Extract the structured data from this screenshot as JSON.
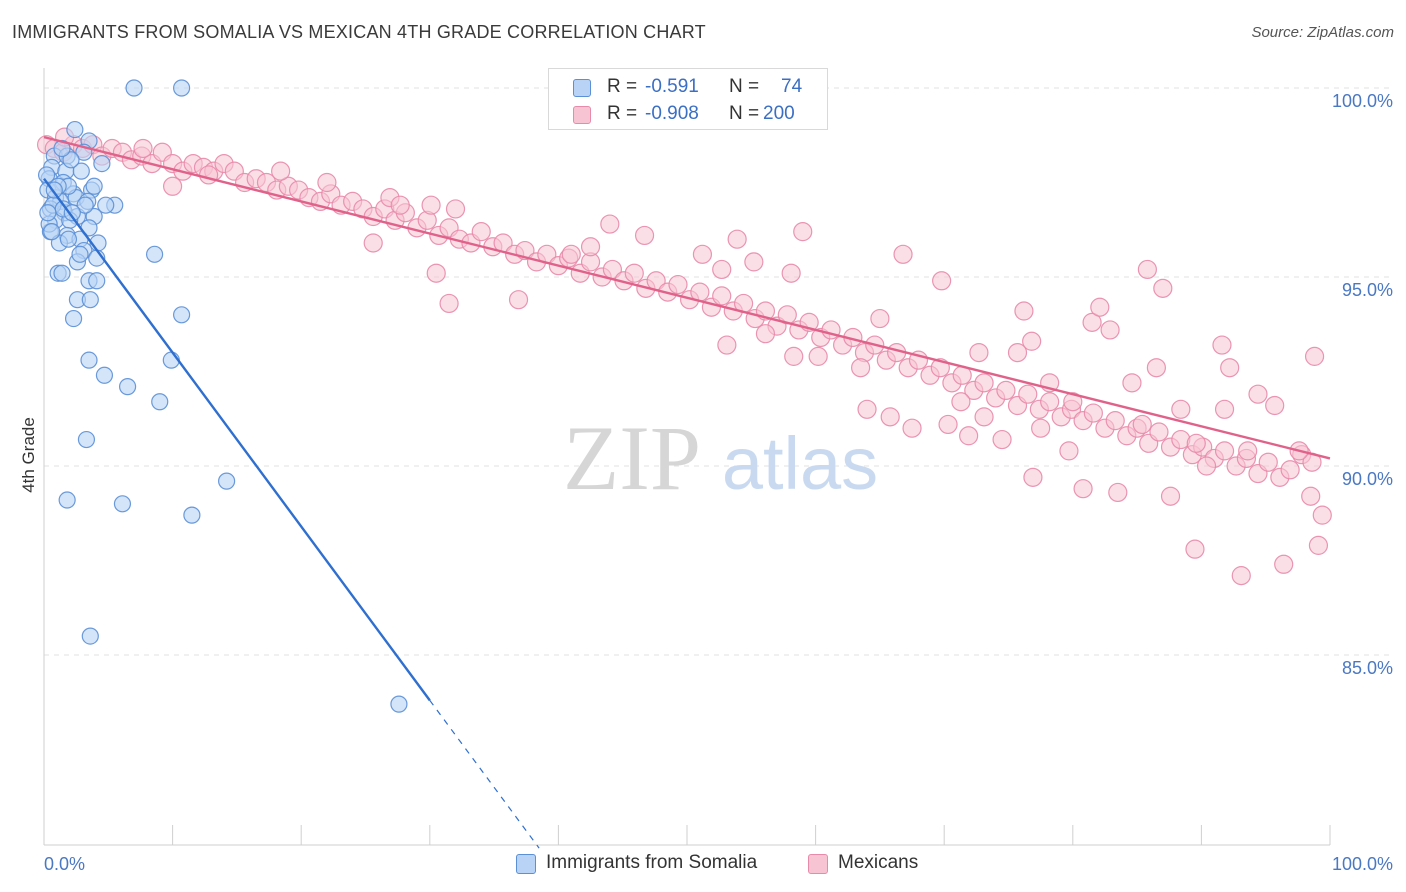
{
  "title": "IMMIGRANTS FROM SOMALIA VS MEXICAN 4TH GRADE CORRELATION CHART",
  "source": "Source: ZipAtlas.com",
  "watermark": {
    "zip": "ZIP",
    "atlas": "atlas"
  },
  "legend": {
    "rows": [
      {
        "r_label": "R =",
        "r_value": "-0.591",
        "n_label": "N =",
        "n_value": "74"
      },
      {
        "r_label": "R =",
        "r_value": "-0.908",
        "n_label": "N =",
        "n_value": "200"
      }
    ]
  },
  "colors": {
    "somalia_fill": "#b8d3f5",
    "somalia_stroke": "#5b8fd6",
    "somalia_line": "#2f6fcf",
    "mexican_fill": "#f7c4d4",
    "mexican_stroke": "#e88aaa",
    "mexican_line": "#e0628b",
    "tick_text": "#4a78c2",
    "grid": "#e2e2e2"
  },
  "chart_data": {
    "type": "scatter",
    "title": "IMMIGRANTS FROM SOMALIA VS MEXICAN 4TH GRADE CORRELATION CHART",
    "xlabel": "",
    "ylabel": "4th Grade",
    "xlim": [
      0,
      100
    ],
    "ylim": [
      80.5,
      101
    ],
    "x_tick_labels": [
      "0.0%",
      "100.0%"
    ],
    "y_ticks": [
      85,
      90,
      95,
      100
    ],
    "y_tick_labels": [
      "85.0%",
      "90.0%",
      "95.0%",
      "100.0%"
    ],
    "grid": true,
    "legend_position": "bottom",
    "series": [
      {
        "name": "Immigrants from Somalia",
        "R": -0.591,
        "N": 74,
        "trend": {
          "x0": 0,
          "y0": 97.6,
          "x1": 30,
          "y1": 83.8,
          "dashed_to_x": 38.5
        },
        "points": [
          [
            7,
            100
          ],
          [
            10.7,
            100
          ],
          [
            2.4,
            98.9
          ],
          [
            3.5,
            98.6
          ],
          [
            0.8,
            98.2
          ],
          [
            1.8,
            98.2
          ],
          [
            3.1,
            98.3
          ],
          [
            0.6,
            97.9
          ],
          [
            1.7,
            97.8
          ],
          [
            2.9,
            97.8
          ],
          [
            4.5,
            98
          ],
          [
            0.4,
            97.6
          ],
          [
            1.5,
            97.5
          ],
          [
            0.3,
            97.3
          ],
          [
            2.3,
            97.2
          ],
          [
            3.7,
            97.3
          ],
          [
            0.9,
            97.1
          ],
          [
            1.3,
            97
          ],
          [
            2.5,
            97.1
          ],
          [
            3.4,
            97
          ],
          [
            5.5,
            96.9
          ],
          [
            0.5,
            96.8
          ],
          [
            1.6,
            96.7
          ],
          [
            2.6,
            96.6
          ],
          [
            3.9,
            96.6
          ],
          [
            0.9,
            96.5
          ],
          [
            2,
            96.5
          ],
          [
            3.5,
            96.3
          ],
          [
            0.5,
            96.2
          ],
          [
            1.8,
            96.1
          ],
          [
            2.8,
            96
          ],
          [
            4.2,
            95.9
          ],
          [
            1.2,
            95.9
          ],
          [
            3.1,
            95.7
          ],
          [
            4.1,
            95.5
          ],
          [
            2.6,
            95.4
          ],
          [
            8.6,
            95.6
          ],
          [
            1.1,
            95.1
          ],
          [
            1.4,
            95.1
          ],
          [
            3.5,
            94.9
          ],
          [
            4.1,
            94.9
          ],
          [
            2.6,
            94.4
          ],
          [
            3.6,
            94.4
          ],
          [
            2.3,
            93.9
          ],
          [
            10.7,
            94
          ],
          [
            3.5,
            92.8
          ],
          [
            9.9,
            92.8
          ],
          [
            4.7,
            92.4
          ],
          [
            6.5,
            92.1
          ],
          [
            9,
            91.7
          ],
          [
            3.3,
            90.7
          ],
          [
            14.2,
            89.6
          ],
          [
            1.8,
            89.1
          ],
          [
            6.1,
            89
          ],
          [
            11.5,
            88.7
          ],
          [
            3.6,
            85.5
          ],
          [
            27.6,
            83.7
          ],
          [
            0.4,
            96.4
          ],
          [
            1.9,
            97.4
          ],
          [
            0.7,
            96.9
          ],
          [
            2.1,
            98.1
          ],
          [
            1.1,
            97.4
          ],
          [
            0.2,
            97.7
          ],
          [
            3.2,
            96.9
          ],
          [
            1.5,
            96.8
          ],
          [
            0.6,
            96.2
          ],
          [
            4.8,
            96.9
          ],
          [
            1.9,
            96
          ],
          [
            2.8,
            95.6
          ],
          [
            0.8,
            97.3
          ],
          [
            1.4,
            98.4
          ],
          [
            3.9,
            97.4
          ],
          [
            0.3,
            96.7
          ],
          [
            2.2,
            96.7
          ]
        ]
      },
      {
        "name": "Mexicans",
        "R": -0.908,
        "N": 200,
        "trend": {
          "x0": 0,
          "y0": 98.7,
          "x1": 100,
          "y1": 90.2
        },
        "points": [
          [
            0.2,
            98.5
          ],
          [
            0.8,
            98.4
          ],
          [
            1.5,
            98.3
          ],
          [
            2.3,
            98.5
          ],
          [
            3,
            98.4
          ],
          [
            3.8,
            98.5
          ],
          [
            4.5,
            98.2
          ],
          [
            5.3,
            98.4
          ],
          [
            6.1,
            98.3
          ],
          [
            6.8,
            98.1
          ],
          [
            7.6,
            98.2
          ],
          [
            8.4,
            98
          ],
          [
            9.2,
            98.3
          ],
          [
            10,
            98
          ],
          [
            10.8,
            97.8
          ],
          [
            11.6,
            98
          ],
          [
            12.4,
            97.9
          ],
          [
            13.2,
            97.8
          ],
          [
            14,
            98
          ],
          [
            14.8,
            97.8
          ],
          [
            15.6,
            97.5
          ],
          [
            16.5,
            97.6
          ],
          [
            17.3,
            97.5
          ],
          [
            18.1,
            97.3
          ],
          [
            19,
            97.4
          ],
          [
            19.8,
            97.3
          ],
          [
            20.6,
            97.1
          ],
          [
            21.5,
            97
          ],
          [
            22.3,
            97.2
          ],
          [
            23.1,
            96.9
          ],
          [
            24,
            97
          ],
          [
            24.8,
            96.8
          ],
          [
            25.6,
            96.6
          ],
          [
            26.5,
            96.8
          ],
          [
            27.3,
            96.5
          ],
          [
            28.1,
            96.7
          ],
          [
            29,
            96.3
          ],
          [
            29.8,
            96.5
          ],
          [
            30.7,
            96.1
          ],
          [
            31.5,
            96.3
          ],
          [
            32.3,
            96
          ],
          [
            33.2,
            95.9
          ],
          [
            34,
            96.2
          ],
          [
            34.9,
            95.8
          ],
          [
            35.7,
            95.9
          ],
          [
            36.6,
            95.6
          ],
          [
            37.4,
            95.7
          ],
          [
            38.3,
            95.4
          ],
          [
            39.1,
            95.6
          ],
          [
            40,
            95.3
          ],
          [
            40.8,
            95.5
          ],
          [
            41.7,
            95.1
          ],
          [
            42.5,
            95.4
          ],
          [
            43.4,
            95
          ],
          [
            44.2,
            95.2
          ],
          [
            45.1,
            94.9
          ],
          [
            45.9,
            95.1
          ],
          [
            46.8,
            94.7
          ],
          [
            47.6,
            94.9
          ],
          [
            48.5,
            94.6
          ],
          [
            49.3,
            94.8
          ],
          [
            50.2,
            94.4
          ],
          [
            51,
            94.6
          ],
          [
            51.9,
            94.2
          ],
          [
            52.7,
            94.5
          ],
          [
            53.6,
            94.1
          ],
          [
            54.4,
            94.3
          ],
          [
            55.3,
            93.9
          ],
          [
            56.1,
            94.1
          ],
          [
            57,
            93.7
          ],
          [
            57.8,
            94
          ],
          [
            58.7,
            93.6
          ],
          [
            59.5,
            93.8
          ],
          [
            60.4,
            93.4
          ],
          [
            61.2,
            93.6
          ],
          [
            62.1,
            93.2
          ],
          [
            62.9,
            93.4
          ],
          [
            63.8,
            93
          ],
          [
            64.6,
            93.2
          ],
          [
            65.5,
            92.8
          ],
          [
            66.3,
            93
          ],
          [
            67.2,
            92.6
          ],
          [
            68,
            92.8
          ],
          [
            68.9,
            92.4
          ],
          [
            69.7,
            92.6
          ],
          [
            70.6,
            92.2
          ],
          [
            71.4,
            92.4
          ],
          [
            72.3,
            92
          ],
          [
            73.1,
            92.2
          ],
          [
            74,
            91.8
          ],
          [
            74.8,
            92
          ],
          [
            75.7,
            91.6
          ],
          [
            76.5,
            91.9
          ],
          [
            77.4,
            91.5
          ],
          [
            78.2,
            91.7
          ],
          [
            79.1,
            91.3
          ],
          [
            79.9,
            91.5
          ],
          [
            80.8,
            91.2
          ],
          [
            81.6,
            91.4
          ],
          [
            82.5,
            91
          ],
          [
            83.3,
            91.2
          ],
          [
            84.2,
            90.8
          ],
          [
            85,
            91
          ],
          [
            85.9,
            90.6
          ],
          [
            86.7,
            90.9
          ],
          [
            87.6,
            90.5
          ],
          [
            88.4,
            90.7
          ],
          [
            89.3,
            90.3
          ],
          [
            90.1,
            90.5
          ],
          [
            91,
            90.2
          ],
          [
            91.8,
            90.4
          ],
          [
            92.7,
            90
          ],
          [
            93.5,
            90.2
          ],
          [
            94.4,
            89.8
          ],
          [
            95.2,
            90.1
          ],
          [
            96.1,
            89.7
          ],
          [
            96.9,
            89.9
          ],
          [
            97.8,
            90.3
          ],
          [
            98.6,
            90.1
          ],
          [
            99.4,
            88.7
          ],
          [
            10,
            97.4
          ],
          [
            25.6,
            95.9
          ],
          [
            30.5,
            95.1
          ],
          [
            36.9,
            94.4
          ],
          [
            26.9,
            97.1
          ],
          [
            30.1,
            96.9
          ],
          [
            31.5,
            94.3
          ],
          [
            41,
            95.6
          ],
          [
            44,
            96.4
          ],
          [
            46.7,
            96.1
          ],
          [
            51.2,
            95.6
          ],
          [
            52.7,
            95.2
          ],
          [
            53.1,
            93.2
          ],
          [
            55.2,
            95.4
          ],
          [
            56.1,
            93.5
          ],
          [
            53.9,
            96
          ],
          [
            59,
            96.2
          ],
          [
            58.1,
            95.1
          ],
          [
            58.3,
            92.9
          ],
          [
            60.2,
            92.9
          ],
          [
            63.5,
            92.6
          ],
          [
            64,
            91.5
          ],
          [
            65,
            93.9
          ],
          [
            65.8,
            91.3
          ],
          [
            66.8,
            95.6
          ],
          [
            67.5,
            91
          ],
          [
            69.8,
            94.9
          ],
          [
            70.3,
            91.1
          ],
          [
            71.3,
            91.7
          ],
          [
            71.9,
            90.8
          ],
          [
            72.7,
            93
          ],
          [
            73.1,
            91.3
          ],
          [
            74.5,
            90.7
          ],
          [
            75.7,
            93
          ],
          [
            76.2,
            94.1
          ],
          [
            76.8,
            93.3
          ],
          [
            76.9,
            89.7
          ],
          [
            77.5,
            91
          ],
          [
            78.2,
            92.2
          ],
          [
            79.7,
            90.4
          ],
          [
            80,
            91.7
          ],
          [
            80.8,
            89.4
          ],
          [
            81.5,
            93.8
          ],
          [
            82.1,
            94.2
          ],
          [
            82.9,
            93.6
          ],
          [
            83.5,
            89.3
          ],
          [
            84.6,
            92.2
          ],
          [
            85.4,
            91.1
          ],
          [
            85.8,
            95.2
          ],
          [
            86.5,
            92.6
          ],
          [
            87,
            94.7
          ],
          [
            87.6,
            89.2
          ],
          [
            88.4,
            91.5
          ],
          [
            89.5,
            87.8
          ],
          [
            89.6,
            90.6
          ],
          [
            90.4,
            90
          ],
          [
            91.6,
            93.2
          ],
          [
            91.8,
            91.5
          ],
          [
            92.2,
            92.6
          ],
          [
            93.1,
            87.1
          ],
          [
            93.6,
            90.4
          ],
          [
            94.4,
            91.9
          ],
          [
            95.7,
            91.6
          ],
          [
            96.4,
            87.4
          ],
          [
            97.6,
            90.4
          ],
          [
            98.5,
            89.2
          ],
          [
            98.8,
            92.9
          ],
          [
            99.1,
            87.9
          ],
          [
            1.6,
            98.7
          ],
          [
            7.7,
            98.4
          ],
          [
            12.8,
            97.7
          ],
          [
            18.4,
            97.8
          ],
          [
            22,
            97.5
          ],
          [
            27.7,
            96.9
          ],
          [
            32,
            96.8
          ],
          [
            42.5,
            95.8
          ]
        ]
      }
    ]
  },
  "bottom_legend": [
    {
      "label": "Immigrants from Somalia"
    },
    {
      "label": "Mexicans"
    }
  ]
}
